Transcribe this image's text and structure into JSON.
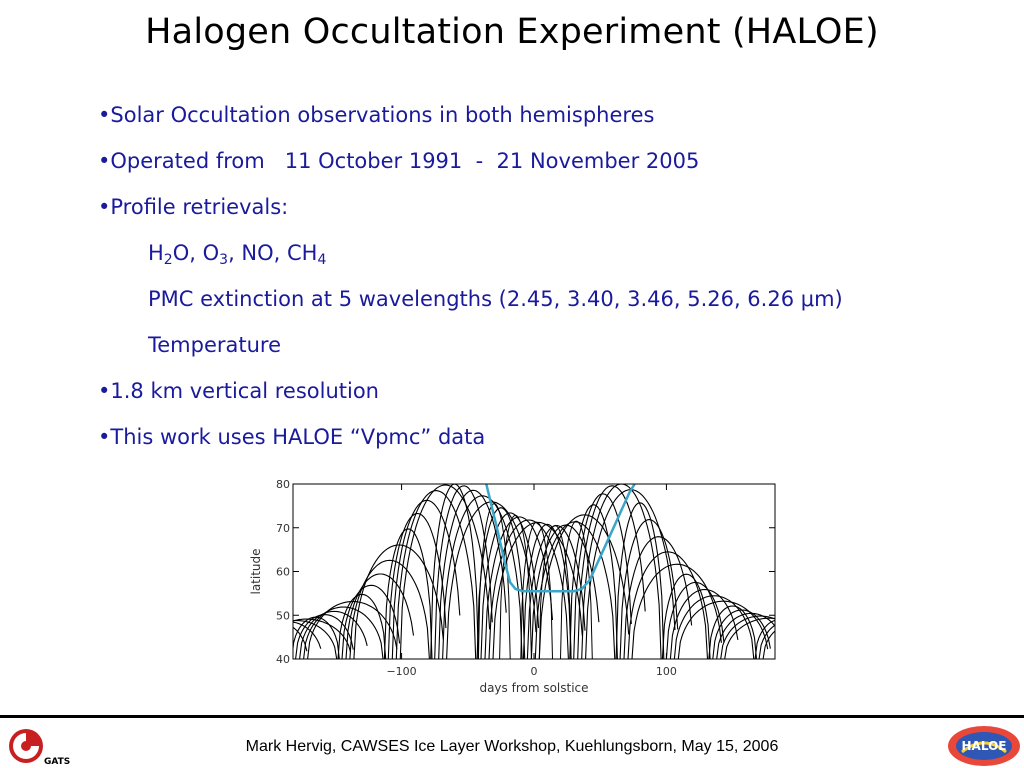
{
  "slide": {
    "title": "Halogen Occultation Experiment (HALOE)",
    "bullets": [
      "•Solar Occultation observations in both hemispheres",
      "•Operated from   11 October 1991  -  21 November 2005",
      "•Profile retrievals:"
    ],
    "species": {
      "h": "H",
      "h_sub": "2",
      "o": "O, O",
      "o_sub": "3",
      "no": ", NO, CH",
      "ch_sub": "4"
    },
    "pmc_line": "PMC extinction at 5 wavelengths (2.45, 3.40, 3.46, 5.26, 6.26 μm)",
    "temperature_line": "Temperature",
    "bullets_after": [
      "•1.8 km vertical resolution",
      "•This work uses HALOE “Vpmc” data"
    ],
    "footer": "Mark Hervig, CAWSES Ice Layer Workshop, Kuehlungsborn, May 15, 2006",
    "logos": {
      "left": "GATS",
      "right": "HALOE"
    }
  },
  "chart_data": {
    "type": "line",
    "xlabel": "days from solstice",
    "ylabel": "latitude",
    "xlim": [
      -182,
      182
    ],
    "ylim": [
      40,
      80
    ],
    "xticks": [
      -100,
      0,
      100
    ],
    "xtick_labels": [
      "−100",
      "0",
      "100"
    ],
    "yticks": [
      40,
      50,
      60,
      70,
      80
    ],
    "ytick_labels": [
      "40",
      "50",
      "60",
      "70",
      "80"
    ],
    "grid": false,
    "colors": {
      "tracks": "#000000",
      "envelope": "#3aa6c9"
    },
    "envelope_series": {
      "x": [
        -36,
        -32,
        -28,
        -25,
        -22,
        -18,
        -14,
        -8,
        0,
        10,
        20,
        30,
        36,
        42,
        48,
        54,
        60,
        66,
        72,
        76
      ],
      "y": [
        80,
        75,
        70,
        66,
        62,
        57.5,
        56,
        55.5,
        55.5,
        55.5,
        55.5,
        55.5,
        56,
        58,
        62,
        66,
        70,
        74,
        78,
        80
      ]
    }
  }
}
